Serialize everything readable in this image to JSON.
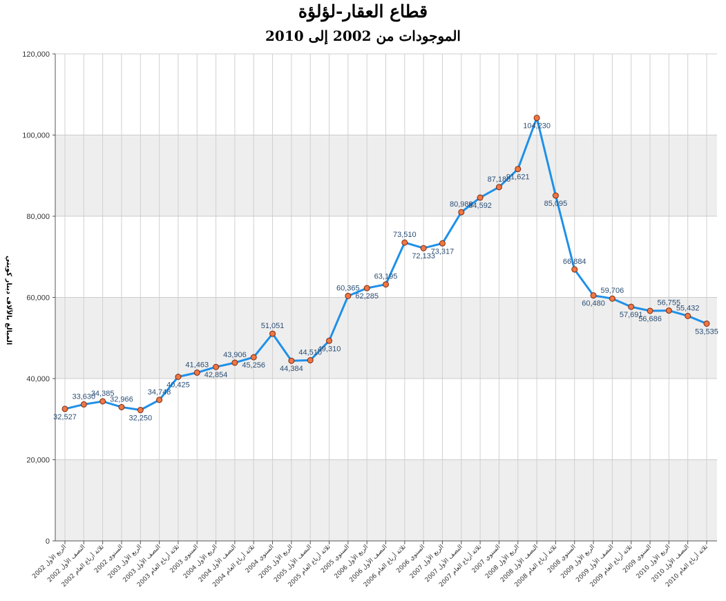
{
  "chart_data": {
    "type": "line",
    "title": "قطاع العقار-لؤلؤة",
    "subtitle": "الموجودات من 2002 إلى 2010",
    "xlabel": "",
    "ylabel": "المبالغ بالآلاف دينار كويتي",
    "ylim": [
      0,
      120000
    ],
    "yticks": [
      "0",
      "20,000",
      "40,000",
      "60,000",
      "80,000",
      "100,000",
      "120,000"
    ],
    "grid": true,
    "line_color": "#1e90e8",
    "marker_color": "#ee7744",
    "band_color": "#eeeeee",
    "categories": [
      "الربع الأول 2002",
      "النصف الأول 2002",
      "ثلاثة أرباع العام 2002",
      "السنوي 2002",
      "الربع الأول 2003",
      "النصف الأول 2003",
      "ثلاثة أرباع العام 2003",
      "السنوي 2003",
      "الربع الأول 2004",
      "النصف الأول 2004",
      "ثلاثة أرباع العام 2004",
      "السنوي 2004",
      "الربع الأول 2005",
      "النصف الأول 2005",
      "ثلاثة أرباع العام 2005",
      "السنوي 2005",
      "الربع الأول 2006",
      "النصف الأول 2006",
      "ثلاثة أرباع العام 2006",
      "السنوي 2006",
      "الربع الأول 2007",
      "النصف الأول 2007",
      "ثلاثة أرباع العام 2007",
      "السنوي 2007",
      "الربع الأول 2008",
      "النصف الأول 2008",
      "ثلاثة أرباع العام 2008",
      "السنوي 2008",
      "الربع الأول 2009",
      "النصف الأول 2009",
      "ثلاثة أرباع العام 2009",
      "السنوي 2009",
      "الربع الأول 2010",
      "النصف الأول 2010",
      "ثلاثة أرباع العام 2010"
    ],
    "values": [
      32527,
      33630,
      34385,
      32966,
      32250,
      34748,
      40425,
      41463,
      42854,
      43906,
      45256,
      51051,
      44384,
      44510,
      49310,
      60365,
      62285,
      63195,
      73510,
      72133,
      73317,
      80988,
      84592,
      87180,
      91621,
      104230,
      85095,
      66884,
      60480,
      59706,
      57691,
      56686,
      56755,
      55432,
      53535
    ],
    "labels": [
      "32,527",
      "33,630",
      "34,385",
      "32,966",
      "32,250",
      "34,748",
      "40,425",
      "41,463",
      "42,854",
      "43,906",
      "45,256",
      "51,051",
      "44,384",
      "44,510",
      "49,310",
      "60,365",
      "62,285",
      "63,195",
      "73,510",
      "72,133",
      "73,317",
      "80,988",
      "84,592",
      "87,180",
      "91,621",
      "104,230",
      "85,095",
      "66,884",
      "60,480",
      "59,706",
      "57,691",
      "56,686",
      "56,755",
      "55,432",
      "53,535"
    ]
  }
}
